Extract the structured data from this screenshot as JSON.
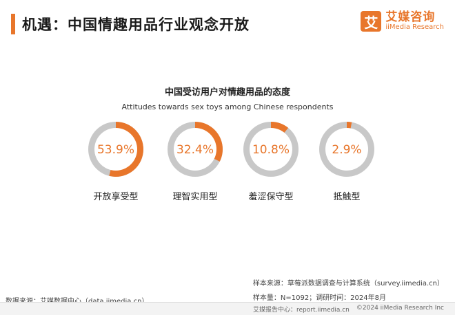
{
  "header": {
    "title": "机遇：中国情趣用品行业观念开放",
    "logo": {
      "mark": "艾",
      "name_cn": "艾媒咨询",
      "name_en": "iiMedia Research"
    }
  },
  "colors": {
    "accent": "#e8762b",
    "track": "#c8c8c8",
    "inner": "#ffffff"
  },
  "chart_data": {
    "type": "pie",
    "title": "中国受访用户对情趣用品的态度",
    "subtitle": "Attitudes towards sex toys among Chinese respondents",
    "series": [
      {
        "name": "开放享受型",
        "value": 53.9,
        "label": "53.9%"
      },
      {
        "name": "理智实用型",
        "value": 32.4,
        "label": "32.4%"
      },
      {
        "name": "羞涩保守型",
        "value": 10.8,
        "label": "10.8%"
      },
      {
        "name": "抵触型",
        "value": 2.9,
        "label": "2.9%"
      }
    ]
  },
  "notes": {
    "sample_source": "样本来源：草莓派数据调查与计算系统（survey.iimedia.cn）",
    "sample_size": "样本量：N=1092；调研时间：2024年8月"
  },
  "source": "数据来源：艾媒数据中心（data.iimedia.cn）",
  "footer": {
    "report": "艾媒报告中心：report.iimedia.cn",
    "copyright": "©2024  iiMedia Research Inc"
  }
}
